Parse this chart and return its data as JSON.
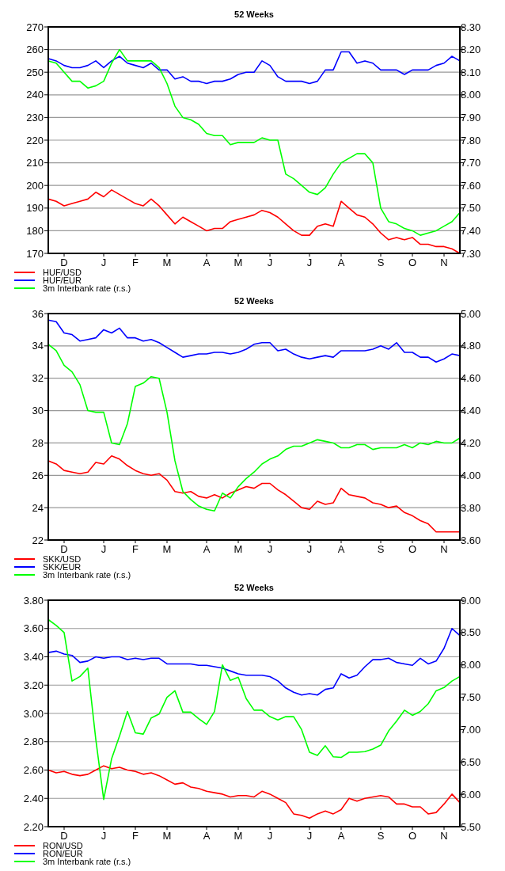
{
  "chart_data": [
    {
      "type": "line",
      "title": "52 Weeks",
      "categories": [
        null,
        null,
        "D",
        null,
        null,
        null,
        null,
        "J",
        null,
        null,
        null,
        "F",
        null,
        null,
        null,
        "M",
        null,
        null,
        null,
        null,
        "A",
        null,
        null,
        null,
        "M",
        null,
        null,
        null,
        "J",
        null,
        null,
        null,
        null,
        "J",
        null,
        null,
        null,
        "A",
        null,
        null,
        null,
        null,
        "S",
        null,
        null,
        null,
        "O",
        null,
        null,
        null,
        "N",
        null,
        null
      ],
      "ylim": [
        170,
        270
      ],
      "yticks": [
        170,
        180,
        190,
        200,
        210,
        220,
        230,
        240,
        250,
        260,
        270
      ],
      "y2lim": [
        7.3,
        8.3
      ],
      "y2ticks": [
        {
          "value": 7.3,
          "label": "7.30"
        },
        {
          "value": 7.4,
          "label": "7.40"
        },
        {
          "value": 7.5,
          "label": "7.50"
        },
        {
          "value": 7.6,
          "label": "7.60"
        },
        {
          "value": 7.7,
          "label": "7.70"
        },
        {
          "value": 7.8,
          "label": "7.80"
        },
        {
          "value": 7.9,
          "label": "7.90"
        },
        {
          "value": 8.0,
          "label": "8.00"
        },
        {
          "value": 8.1,
          "label": "8.10"
        },
        {
          "value": 8.2,
          "label": "8.20"
        },
        {
          "value": 8.3,
          "label": "8.30"
        }
      ],
      "grid": "y",
      "legend": "bottom",
      "line_style": "solid",
      "series": [
        {
          "name": "HUF/USD",
          "color": "#ff0000",
          "values": [
            194,
            193,
            191,
            192,
            193,
            194,
            197,
            195,
            198,
            196,
            194,
            192,
            191,
            194,
            191,
            187,
            183,
            186,
            184,
            182,
            180,
            181,
            181,
            184,
            185,
            186,
            187,
            189,
            188,
            186,
            183,
            180,
            178,
            178,
            182,
            183,
            182,
            193,
            190,
            187,
            186,
            183,
            179,
            176,
            177,
            176,
            177,
            174,
            174,
            173,
            173,
            172,
            170
          ]
        },
        {
          "name": "HUF/EUR",
          "color": "#0000ff",
          "values": [
            256,
            255,
            253,
            252,
            252,
            253,
            255,
            252,
            255,
            257,
            254,
            253,
            252,
            254,
            251,
            251,
            247,
            248,
            246,
            246,
            245,
            246,
            246,
            247,
            249,
            250,
            250,
            255,
            253,
            248,
            246,
            246,
            246,
            245,
            246,
            251,
            251,
            259,
            259,
            254,
            255,
            254,
            251,
            251,
            251,
            249,
            251,
            251,
            251,
            253,
            254,
            257,
            255
          ]
        },
        {
          "name": "3m Interbank rate (r.s.)",
          "color": "#00ff00",
          "axis": "y2",
          "values": [
            8.15,
            8.14,
            8.1,
            8.06,
            8.06,
            8.03,
            8.04,
            8.06,
            8.14,
            8.2,
            8.15,
            8.15,
            8.15,
            8.15,
            8.12,
            8.05,
            7.95,
            7.9,
            7.89,
            7.87,
            7.83,
            7.82,
            7.82,
            7.78,
            7.79,
            7.79,
            7.79,
            7.81,
            7.8,
            7.8,
            7.65,
            7.63,
            7.6,
            7.57,
            7.56,
            7.59,
            7.65,
            7.7,
            7.72,
            7.74,
            7.74,
            7.7,
            7.5,
            7.44,
            7.43,
            7.41,
            7.4,
            7.38,
            7.39,
            7.4,
            7.42,
            7.44,
            7.48
          ]
        }
      ]
    },
    {
      "type": "line",
      "title": "52 Weeks",
      "categories": [
        null,
        null,
        "D",
        null,
        null,
        null,
        null,
        "J",
        null,
        null,
        null,
        "F",
        null,
        null,
        null,
        "M",
        null,
        null,
        null,
        null,
        "A",
        null,
        null,
        null,
        "M",
        null,
        null,
        null,
        "J",
        null,
        null,
        null,
        null,
        "J",
        null,
        null,
        null,
        "A",
        null,
        null,
        null,
        null,
        "S",
        null,
        null,
        null,
        "O",
        null,
        null,
        null,
        "N",
        null,
        null
      ],
      "ylim": [
        22,
        36
      ],
      "yticks": [
        22,
        24,
        26,
        28,
        30,
        32,
        34,
        36
      ],
      "y2lim": [
        3.6,
        5.0
      ],
      "y2ticks": [
        {
          "value": 3.6,
          "label": "3.60"
        },
        {
          "value": 3.8,
          "label": "3.80"
        },
        {
          "value": 4.0,
          "label": "4.00"
        },
        {
          "value": 4.2,
          "label": "4.20"
        },
        {
          "value": 4.4,
          "label": "4.40"
        },
        {
          "value": 4.6,
          "label": "4.60"
        },
        {
          "value": 4.8,
          "label": "4.80"
        },
        {
          "value": 5.0,
          "label": "5.00"
        }
      ],
      "grid": "y",
      "legend": "bottom",
      "line_style": "solid",
      "series": [
        {
          "name": "SKK/USD",
          "color": "#ff0000",
          "values": [
            26.9,
            26.7,
            26.3,
            26.2,
            26.1,
            26.2,
            26.8,
            26.7,
            27.2,
            27.0,
            26.6,
            26.3,
            26.1,
            26.0,
            26.1,
            25.7,
            25.0,
            24.9,
            25.0,
            24.7,
            24.6,
            24.8,
            24.6,
            24.9,
            25.1,
            25.3,
            25.2,
            25.5,
            25.5,
            25.1,
            24.8,
            24.4,
            24.0,
            23.9,
            24.4,
            24.2,
            24.3,
            25.2,
            24.8,
            24.7,
            24.6,
            24.3,
            24.2,
            24.0,
            24.1,
            23.7,
            23.5,
            23.2,
            23.0,
            22.5,
            22.5,
            22.5,
            22.5
          ]
        },
        {
          "name": "SKK/EUR",
          "color": "#0000ff",
          "values": [
            35.6,
            35.5,
            34.8,
            34.7,
            34.3,
            34.4,
            34.5,
            35.0,
            34.8,
            35.1,
            34.5,
            34.5,
            34.3,
            34.4,
            34.2,
            33.9,
            33.6,
            33.3,
            33.4,
            33.5,
            33.5,
            33.6,
            33.6,
            33.5,
            33.6,
            33.8,
            34.1,
            34.2,
            34.2,
            33.7,
            33.8,
            33.5,
            33.3,
            33.2,
            33.3,
            33.4,
            33.3,
            33.7,
            33.7,
            33.7,
            33.7,
            33.8,
            34.0,
            33.8,
            34.2,
            33.6,
            33.6,
            33.3,
            33.3,
            33.0,
            33.2,
            33.5,
            33.4
          ]
        },
        {
          "name": "3m Interbank rate (r.s.)",
          "color": "#00ff00",
          "axis": "y2",
          "values": [
            4.81,
            4.77,
            4.68,
            4.64,
            4.56,
            4.4,
            4.39,
            4.39,
            4.2,
            4.19,
            4.32,
            4.55,
            4.57,
            4.61,
            4.6,
            4.39,
            4.09,
            3.9,
            3.85,
            3.81,
            3.79,
            3.78,
            3.89,
            3.86,
            3.93,
            3.98,
            4.02,
            4.07,
            4.1,
            4.12,
            4.16,
            4.18,
            4.18,
            4.2,
            4.22,
            4.21,
            4.2,
            4.17,
            4.17,
            4.19,
            4.19,
            4.16,
            4.17,
            4.17,
            4.17,
            4.19,
            4.17,
            4.2,
            4.19,
            4.21,
            4.2,
            4.2,
            4.23
          ]
        }
      ]
    },
    {
      "type": "line",
      "title": "52 Weeks",
      "categories": [
        null,
        null,
        "D",
        null,
        null,
        null,
        null,
        "J",
        null,
        null,
        null,
        "F",
        null,
        null,
        null,
        "M",
        null,
        null,
        null,
        null,
        "A",
        null,
        null,
        null,
        "M",
        null,
        null,
        null,
        "J",
        null,
        null,
        null,
        null,
        "J",
        null,
        null,
        null,
        "A",
        null,
        null,
        null,
        null,
        "S",
        null,
        null,
        null,
        "O",
        null,
        null,
        null,
        "N",
        null,
        null
      ],
      "ylim": [
        2.2,
        3.8
      ],
      "yticks": [
        {
          "value": 2.2,
          "label": "2.20"
        },
        {
          "value": 2.4,
          "label": "2.40"
        },
        {
          "value": 2.6,
          "label": "2.60"
        },
        {
          "value": 2.8,
          "label": "2.80"
        },
        {
          "value": 3.0,
          "label": "3.00"
        },
        {
          "value": 3.2,
          "label": "3.20"
        },
        {
          "value": 3.4,
          "label": "3.40"
        },
        {
          "value": 3.6,
          "label": "3.60"
        },
        {
          "value": 3.8,
          "label": "3.80"
        }
      ],
      "y2lim": [
        5.5,
        9.0
      ],
      "y2ticks": [
        {
          "value": 5.5,
          "label": "5.50"
        },
        {
          "value": 6.0,
          "label": "6.00"
        },
        {
          "value": 6.5,
          "label": "6.50"
        },
        {
          "value": 7.0,
          "label": "7.00"
        },
        {
          "value": 7.5,
          "label": "7.50"
        },
        {
          "value": 8.0,
          "label": "8.00"
        },
        {
          "value": 8.5,
          "label": "8.50"
        },
        {
          "value": 9.0,
          "label": "9.00"
        }
      ],
      "grid": "y",
      "legend": "bottom",
      "line_style": "solid",
      "series": [
        {
          "name": "RON/USD",
          "color": "#ff0000",
          "values": [
            2.6,
            2.58,
            2.59,
            2.57,
            2.56,
            2.57,
            2.6,
            2.63,
            2.61,
            2.62,
            2.6,
            2.59,
            2.57,
            2.58,
            2.56,
            2.53,
            2.5,
            2.51,
            2.48,
            2.47,
            2.45,
            2.44,
            2.43,
            2.41,
            2.42,
            2.42,
            2.41,
            2.45,
            2.43,
            2.4,
            2.37,
            2.29,
            2.28,
            2.26,
            2.29,
            2.31,
            2.29,
            2.32,
            2.4,
            2.38,
            2.4,
            2.41,
            2.42,
            2.41,
            2.36,
            2.36,
            2.34,
            2.34,
            2.29,
            2.3,
            2.36,
            2.43,
            2.37
          ]
        },
        {
          "name": "RON/EUR",
          "color": "#0000ff",
          "values": [
            3.43,
            3.44,
            3.42,
            3.41,
            3.36,
            3.37,
            3.4,
            3.39,
            3.4,
            3.4,
            3.38,
            3.39,
            3.38,
            3.39,
            3.39,
            3.35,
            3.35,
            3.35,
            3.35,
            3.34,
            3.34,
            3.33,
            3.32,
            3.3,
            3.28,
            3.27,
            3.27,
            3.27,
            3.26,
            3.23,
            3.18,
            3.15,
            3.13,
            3.14,
            3.13,
            3.17,
            3.18,
            3.28,
            3.25,
            3.27,
            3.33,
            3.38,
            3.38,
            3.39,
            3.36,
            3.35,
            3.34,
            3.39,
            3.35,
            3.37,
            3.46,
            3.6,
            3.55
          ]
        },
        {
          "name": "3m Interbank rate (r.s.)",
          "color": "#00ff00",
          "axis": "y2",
          "values": [
            8.7,
            8.61,
            8.5,
            7.75,
            7.82,
            7.95,
            6.85,
            5.92,
            6.55,
            6.9,
            7.28,
            6.95,
            6.93,
            7.18,
            7.24,
            7.5,
            7.6,
            7.27,
            7.27,
            7.17,
            7.08,
            7.28,
            8.0,
            7.76,
            7.81,
            7.48,
            7.3,
            7.3,
            7.2,
            7.15,
            7.2,
            7.2,
            7.0,
            6.65,
            6.6,
            6.75,
            6.58,
            6.57,
            6.65,
            6.65,
            6.66,
            6.7,
            6.76,
            6.98,
            7.13,
            7.3,
            7.22,
            7.28,
            7.4,
            7.6,
            7.65,
            7.75,
            7.82
          ]
        }
      ]
    }
  ]
}
